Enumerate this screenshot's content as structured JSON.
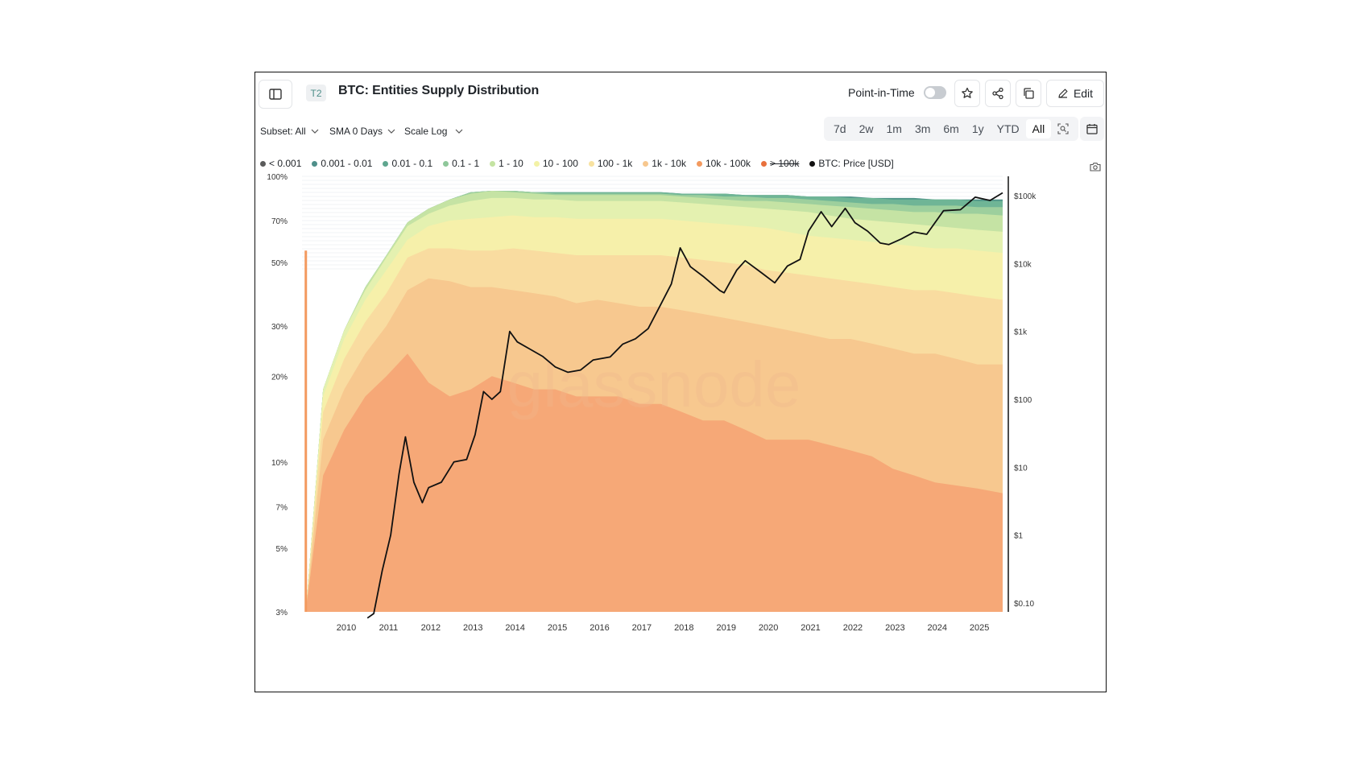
{
  "header": {
    "badge": "T2",
    "title": "BTC: Entities Supply Distribution",
    "point_in_time_label": "Point-in-Time",
    "point_in_time_on": false,
    "edit_label": "Edit",
    "icons": [
      "sidebar-toggle-icon",
      "star-icon",
      "share-icon",
      "copy-icon",
      "pencil-icon"
    ]
  },
  "controls": {
    "subset": "Subset: All",
    "sma": "SMA 0 Days",
    "scale": "Scale Log",
    "ranges": [
      "7d",
      "2w",
      "1m",
      "3m",
      "6m",
      "1y",
      "YTD",
      "All"
    ],
    "active_range": "All"
  },
  "legend": [
    {
      "label": "< 0.001",
      "color": "#5b5b5b",
      "active": true
    },
    {
      "label": "0.001 - 0.01",
      "color": "#4f8f8a",
      "active": true
    },
    {
      "label": "0.01 - 0.1",
      "color": "#5fa68f",
      "active": true
    },
    {
      "label": "0.1 - 1",
      "color": "#8fc79a",
      "active": true
    },
    {
      "label": "1 - 10",
      "color": "#c4e3a2",
      "active": true
    },
    {
      "label": "10 - 100",
      "color": "#f3f2a6",
      "active": true
    },
    {
      "label": "100 - 1k",
      "color": "#f8e2a0",
      "active": true
    },
    {
      "label": "1k - 10k",
      "color": "#f7c78e",
      "active": true
    },
    {
      "label": "10k - 100k",
      "color": "#f39a5f",
      "active": true
    },
    {
      "label": "> 100k",
      "color": "#e8703c",
      "active": false
    },
    {
      "label": "BTC: Price [USD]",
      "color": "#111111",
      "active": true
    }
  ],
  "watermark": "glassnode",
  "chart_data": {
    "type": "area",
    "x": [
      2009.1,
      2009.5,
      2010.0,
      2010.5,
      2011.0,
      2011.5,
      2012.0,
      2012.5,
      2013.0,
      2013.5,
      2014.0,
      2014.5,
      2015.0,
      2015.5,
      2016.0,
      2016.5,
      2017.0,
      2017.5,
      2018.0,
      2018.5,
      2019.0,
      2019.5,
      2020.0,
      2020.5,
      2021.0,
      2021.5,
      2022.0,
      2022.5,
      2023.0,
      2023.5,
      2024.0,
      2024.5,
      2025.0,
      2025.6
    ],
    "left_axis": {
      "scale": "log",
      "ticks": [
        "3%",
        "5%",
        "7%",
        "10%",
        "20%",
        "30%",
        "50%",
        "70%",
        "100%"
      ],
      "ylim": [
        3,
        100
      ]
    },
    "right_axis": {
      "scale": "log",
      "ticks": [
        "$0.10",
        "$1",
        "$10",
        "$100",
        "$1k",
        "$10k",
        "$100k"
      ]
    },
    "x_ticks": [
      "2010",
      "2011",
      "2012",
      "2013",
      "2014",
      "2015",
      "2016",
      "2017",
      "2018",
      "2019",
      "2020",
      "2021",
      "2022",
      "2023",
      "2024",
      "2025"
    ],
    "stack_unit": "cumulative % of supply (top of band)",
    "series": [
      {
        "name": "10k - 100k",
        "color": "#f6a877",
        "values": [
          3.1,
          9,
          13,
          17,
          20,
          24,
          19,
          17,
          18,
          20,
          19,
          18,
          18,
          17,
          17,
          17,
          16,
          16,
          15,
          14,
          14,
          13,
          12,
          12,
          12,
          11.5,
          11,
          10.5,
          9.5,
          9,
          8.5,
          8.3,
          8.1,
          7.8
        ]
      },
      {
        "name": "1k - 10k",
        "color": "#f7c88f",
        "values": [
          3.1,
          12,
          18,
          24,
          30,
          40,
          44,
          43,
          41,
          41,
          40,
          39,
          38,
          36,
          37,
          36,
          35,
          35,
          34,
          33,
          32,
          31,
          30,
          29,
          28,
          27,
          27,
          26,
          25,
          24,
          24,
          23,
          22,
          22
        ]
      },
      {
        "name": "100 - 1k",
        "color": "#f9dca0",
        "values": [
          3.1,
          15,
          23,
          31,
          39,
          52,
          56,
          56,
          55,
          55,
          56,
          55,
          54,
          53,
          53,
          53,
          53,
          53,
          52,
          51,
          50,
          49,
          47,
          46,
          45,
          44,
          43,
          42,
          41,
          40,
          40,
          39,
          38,
          37
        ]
      },
      {
        "name": "10 - 100",
        "color": "#f6f0aa",
        "values": [
          3.1,
          17,
          27,
          37,
          47,
          60,
          67,
          70,
          71,
          72,
          73,
          72,
          72,
          71,
          71,
          71,
          71,
          71,
          70,
          69,
          68,
          67,
          66,
          64,
          62,
          61,
          60,
          59,
          58,
          57,
          56,
          56,
          55,
          54
        ]
      },
      {
        "name": "1 - 10",
        "color": "#e4f1b0",
        "values": [
          3.1,
          18,
          29,
          40,
          52,
          67,
          74,
          79,
          82,
          84,
          84,
          83,
          83,
          82,
          82,
          82,
          82,
          82,
          81,
          80,
          79,
          78,
          77,
          76,
          75,
          73,
          71,
          70,
          69,
          68,
          67,
          66,
          65,
          64
        ]
      },
      {
        "name": "0.1 - 1",
        "color": "#c5e3a4",
        "values": [
          3.1,
          18,
          29,
          41,
          53,
          69,
          77,
          83,
          87,
          89,
          88,
          87,
          86,
          86,
          86,
          86,
          86,
          86,
          85,
          84,
          83,
          82,
          82,
          81,
          80,
          79,
          78,
          77,
          76,
          75,
          75,
          74,
          74,
          73
        ]
      },
      {
        "name": "0.01 - 0.1",
        "color": "#9dcf9d",
        "values": [
          3.1,
          18,
          29,
          41,
          53,
          69,
          77,
          83,
          88,
          89,
          89,
          88,
          87,
          87,
          87,
          87,
          87,
          87,
          86,
          86,
          85,
          85,
          84,
          84,
          83,
          82,
          81,
          80,
          80,
          79,
          79,
          79,
          78,
          78
        ]
      },
      {
        "name": "0.001 - 0.01",
        "color": "#6fb596",
        "values": [
          3.1,
          18,
          29,
          41,
          53,
          69,
          77,
          83,
          88,
          89,
          89,
          88,
          88,
          88,
          88,
          88,
          88,
          88,
          87,
          87,
          87,
          86,
          86,
          86,
          85,
          85,
          84,
          84,
          83,
          83,
          83,
          83,
          82,
          82
        ]
      },
      {
        "name": "< 0.001",
        "color": "#4f9488",
        "values": [
          3.1,
          18,
          29,
          41,
          53,
          69,
          77,
          83,
          88,
          89,
          89,
          88,
          88,
          88,
          88,
          88,
          88,
          88,
          87,
          87,
          87,
          86,
          86,
          86,
          85,
          85,
          85,
          84,
          84,
          84,
          83,
          83,
          83,
          83
        ]
      }
    ],
    "price": {
      "name": "BTC: Price [USD]",
      "x": [
        2010.55,
        2010.7,
        2010.9,
        2011.1,
        2011.3,
        2011.45,
        2011.65,
        2011.85,
        2012.0,
        2012.3,
        2012.6,
        2012.9,
        2013.1,
        2013.3,
        2013.5,
        2013.7,
        2013.92,
        2014.1,
        2014.4,
        2014.7,
        2015.0,
        2015.3,
        2015.6,
        2015.9,
        2016.3,
        2016.6,
        2016.9,
        2017.2,
        2017.5,
        2017.75,
        2017.96,
        2018.2,
        2018.5,
        2018.9,
        2019.0,
        2019.3,
        2019.5,
        2019.9,
        2020.2,
        2020.5,
        2020.8,
        2021.0,
        2021.3,
        2021.55,
        2021.87,
        2022.1,
        2022.4,
        2022.7,
        2022.9,
        2023.2,
        2023.5,
        2023.8,
        2024.2,
        2024.6,
        2024.95,
        2025.3,
        2025.6
      ],
      "y": [
        0.06,
        0.07,
        0.3,
        1,
        8,
        28,
        6,
        3,
        5,
        6,
        12,
        13,
        30,
        130,
        100,
        130,
        1000,
        700,
        550,
        430,
        300,
        250,
        270,
        380,
        420,
        650,
        780,
        1100,
        2500,
        5000,
        17000,
        9000,
        6500,
        4000,
        3700,
        8000,
        11000,
        7200,
        5200,
        9200,
        11500,
        30000,
        58000,
        35000,
        65000,
        40000,
        30000,
        20000,
        19000,
        23000,
        29000,
        27000,
        60000,
        62000,
        95000,
        85000,
        110000
      ]
    }
  }
}
